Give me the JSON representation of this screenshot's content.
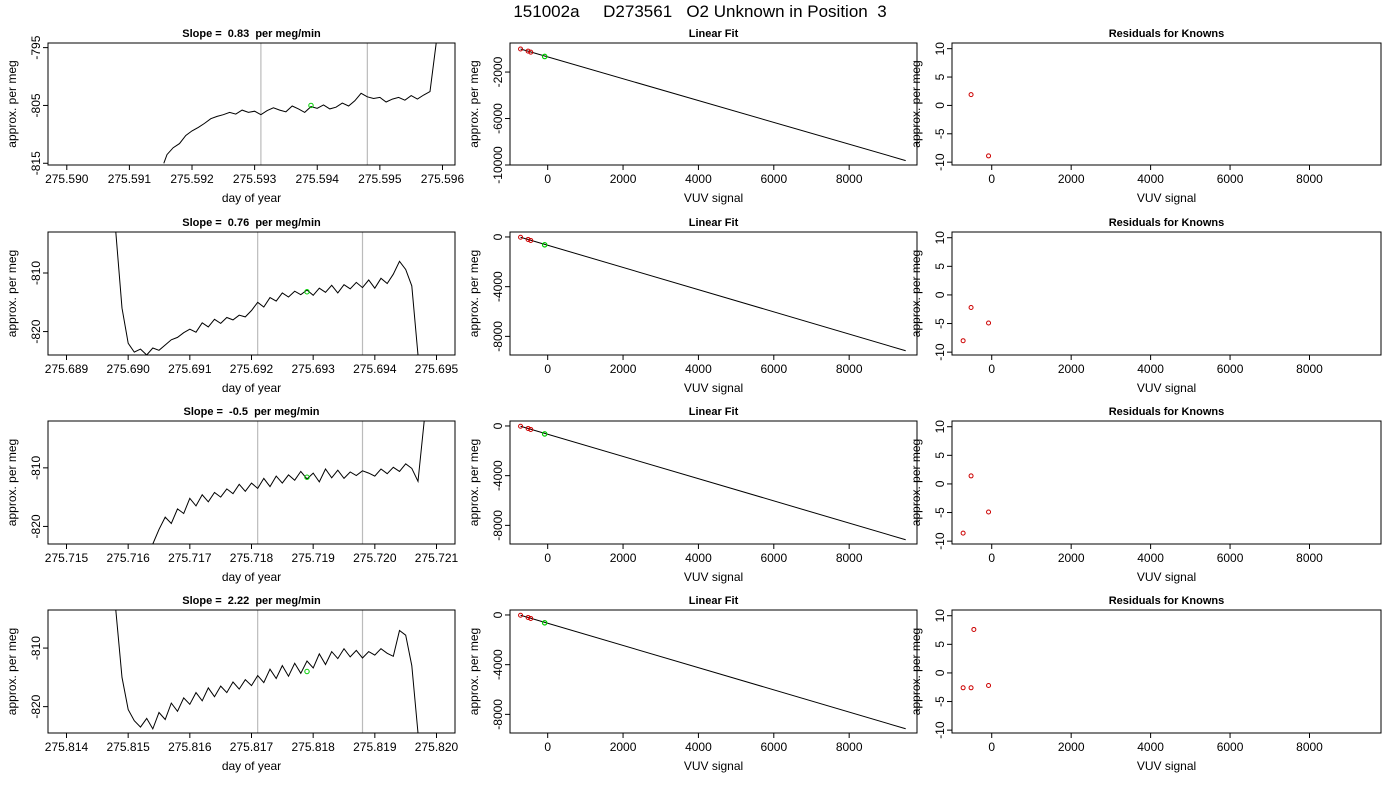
{
  "page_title": "151002a     D273561   O2 Unknown in Position  3",
  "colors": {
    "trace": "#000000",
    "highlight": "#00cc00",
    "known_point": "#cc0000",
    "marker_line": "#bbbbbb",
    "fit_line": "#000000"
  },
  "chart_data": [
    {
      "type": "line",
      "title": "Slope =  0.83  per meg/min",
      "xlabel": "day of year",
      "ylabel": "approx. per meg",
      "xlim": [
        275.5897,
        275.5962
      ],
      "ylim": [
        -815.3,
        -794.2
      ],
      "x_ticks": [
        "275.590",
        "275.591",
        "275.592",
        "275.593",
        "275.594",
        "275.595",
        "275.596"
      ],
      "x_tick_values": [
        275.59,
        275.591,
        275.592,
        275.593,
        275.594,
        275.595,
        275.596
      ],
      "y_ticks": [
        "-815",
        "-805",
        "-795"
      ],
      "y_tick_values": [
        -815,
        -805,
        -795
      ],
      "vlines": [
        275.5931,
        275.5948
      ],
      "highlight_point": {
        "x": 275.5939,
        "y": -805.0
      },
      "x": [
        275.59155,
        275.5916,
        275.5917,
        275.5918,
        275.5919,
        275.592,
        275.5921,
        275.5922,
        275.5923,
        275.5924,
        275.5925,
        275.5926,
        275.5927,
        275.5928,
        275.5929,
        275.593,
        275.5931,
        275.5932,
        275.5933,
        275.5934,
        275.5935,
        275.5936,
        275.5937,
        275.5938,
        275.5939,
        275.594,
        275.5941,
        275.5942,
        275.5943,
        275.5944,
        275.5945,
        275.5946,
        275.5947,
        275.5948,
        275.5949,
        275.595,
        275.5951,
        275.5952,
        275.5953,
        275.5954,
        275.5955,
        275.5956,
        275.5957,
        275.5958,
        275.5959
      ],
      "y": [
        -815.0,
        -813.5,
        -812.3,
        -811.6,
        -810.2,
        -809.4,
        -808.8,
        -808.1,
        -807.3,
        -806.9,
        -806.6,
        -806.2,
        -806.5,
        -805.8,
        -806.2,
        -806.0,
        -806.6,
        -805.9,
        -805.4,
        -805.8,
        -806.1,
        -805.1,
        -805.6,
        -806.2,
        -805.2,
        -805.5,
        -804.9,
        -805.6,
        -805.3,
        -804.6,
        -805.1,
        -804.2,
        -802.9,
        -803.5,
        -803.8,
        -803.6,
        -804.4,
        -803.9,
        -803.6,
        -804.1,
        -803.3,
        -803.9,
        -803.2,
        -802.6,
        -794.2
      ]
    },
    {
      "type": "scatter",
      "title": "Linear Fit",
      "xlabel": "VUV signal",
      "ylabel": "approx. per meg",
      "xlim": [
        -1000,
        9800
      ],
      "ylim": [
        -10000,
        500
      ],
      "x_ticks": [
        "0",
        "2000",
        "4000",
        "6000",
        "8000"
      ],
      "x_tick_values": [
        0,
        2000,
        4000,
        6000,
        8000
      ],
      "y_ticks": [
        "-10000",
        "-6000",
        "-2000"
      ],
      "y_tick_values": [
        -10000,
        -6000,
        -2000
      ],
      "fit_line": {
        "x": [
          -720,
          9500
        ],
        "y": [
          -20,
          -9620
        ]
      },
      "knowns": {
        "x": [
          -720,
          -520,
          -450
        ],
        "y": [
          -20,
          -200,
          -290
        ]
      },
      "unknown": {
        "x": -80,
        "y": -660
      }
    },
    {
      "type": "scatter",
      "title": "Residuals for Knowns",
      "xlabel": "VUV signal",
      "ylabel": "approx. per meg",
      "xlim": [
        -1000,
        9800
      ],
      "ylim": [
        -10.5,
        11
      ],
      "x_ticks": [
        "0",
        "2000",
        "4000",
        "6000",
        "8000"
      ],
      "x_tick_values": [
        0,
        2000,
        4000,
        6000,
        8000
      ],
      "y_ticks": [
        "-10",
        "-5",
        "0",
        "5",
        "10"
      ],
      "y_tick_values": [
        -10,
        -5,
        0,
        5,
        10
      ],
      "residuals": {
        "x": [
          -520,
          -80
        ],
        "y": [
          1.9,
          -8.9
        ]
      }
    },
    {
      "type": "line",
      "title": "Slope =  0.76  per meg/min",
      "xlabel": "day of year",
      "ylabel": "approx. per meg",
      "xlim": [
        275.6887,
        275.6953
      ],
      "ylim": [
        -824.0,
        -803.0
      ],
      "x_ticks": [
        "275.689",
        "275.690",
        "275.691",
        "275.692",
        "275.693",
        "275.694",
        "275.695"
      ],
      "x_tick_values": [
        275.689,
        275.69,
        275.691,
        275.692,
        275.693,
        275.694,
        275.695
      ],
      "y_ticks": [
        "-820",
        "-810"
      ],
      "y_tick_values": [
        -820,
        -810
      ],
      "vlines": [
        275.6921,
        275.6938
      ],
      "highlight_point": {
        "x": 275.6929,
        "y": -813.2
      },
      "x": [
        275.6898,
        275.6899,
        275.69,
        275.6901,
        275.6902,
        275.6903,
        275.6904,
        275.6905,
        275.6906,
        275.6907,
        275.6908,
        275.6909,
        275.691,
        275.6911,
        275.6912,
        275.6913,
        275.6914,
        275.6915,
        275.6916,
        275.6917,
        275.6918,
        275.6919,
        275.692,
        275.6921,
        275.6922,
        275.6923,
        275.6924,
        275.6925,
        275.6926,
        275.6927,
        275.6928,
        275.6929,
        275.693,
        275.6931,
        275.6932,
        275.6933,
        275.6934,
        275.6935,
        275.6936,
        275.6937,
        275.6938,
        275.6939,
        275.694,
        275.6941,
        275.6942,
        275.6943,
        275.6944,
        275.6945,
        275.6946,
        275.6947
      ],
      "y": [
        -803.0,
        -816.0,
        -822.0,
        -823.5,
        -823.0,
        -824.0,
        -822.8,
        -823.2,
        -822.3,
        -821.4,
        -821.0,
        -820.2,
        -819.6,
        -820.1,
        -818.5,
        -819.2,
        -817.9,
        -818.6,
        -817.6,
        -818.0,
        -817.2,
        -817.5,
        -816.4,
        -815.0,
        -815.8,
        -814.2,
        -814.8,
        -813.4,
        -814.1,
        -813.1,
        -813.7,
        -812.9,
        -813.8,
        -812.6,
        -813.3,
        -812.1,
        -813.4,
        -812.0,
        -812.7,
        -811.6,
        -812.5,
        -811.2,
        -812.6,
        -810.9,
        -811.8,
        -810.2,
        -808.0,
        -809.4,
        -812.2,
        -824.0
      ]
    },
    {
      "type": "scatter",
      "title": "Linear Fit",
      "xlabel": "VUV signal",
      "ylabel": "approx. per meg",
      "xlim": [
        -1000,
        9800
      ],
      "ylim": [
        -9500,
        400
      ],
      "x_ticks": [
        "0",
        "2000",
        "4000",
        "6000",
        "8000"
      ],
      "x_tick_values": [
        0,
        2000,
        4000,
        6000,
        8000
      ],
      "y_ticks": [
        "-8000",
        "-4000",
        "0"
      ],
      "y_tick_values": [
        -8000,
        -4000,
        0
      ],
      "fit_line": {
        "x": [
          -720,
          9500
        ],
        "y": [
          -20,
          -9160
        ]
      },
      "knowns": {
        "x": [
          -720,
          -520,
          -450
        ],
        "y": [
          -20,
          -200,
          -280
        ]
      },
      "unknown": {
        "x": -80,
        "y": -630
      }
    },
    {
      "type": "scatter",
      "title": "Residuals for Knowns",
      "xlabel": "VUV signal",
      "ylabel": "approx. per meg",
      "xlim": [
        -1000,
        9800
      ],
      "ylim": [
        -10.5,
        11
      ],
      "x_ticks": [
        "0",
        "2000",
        "4000",
        "6000",
        "8000"
      ],
      "x_tick_values": [
        0,
        2000,
        4000,
        6000,
        8000
      ],
      "y_ticks": [
        "-10",
        "-5",
        "0",
        "5",
        "10"
      ],
      "y_tick_values": [
        -10,
        -5,
        0,
        5,
        10
      ],
      "residuals": {
        "x": [
          -720,
          -520,
          -80
        ],
        "y": [
          -8.0,
          -2.2,
          -4.9
        ]
      }
    },
    {
      "type": "line",
      "title": "Slope =  -0.5  per meg/min",
      "xlabel": "day of year",
      "ylabel": "approx. per meg",
      "xlim": [
        275.7147,
        275.7213
      ],
      "ylim": [
        -823.0,
        -802.0
      ],
      "x_ticks": [
        "275.715",
        "275.716",
        "275.717",
        "275.718",
        "275.719",
        "275.720",
        "275.721"
      ],
      "x_tick_values": [
        275.715,
        275.716,
        275.717,
        275.718,
        275.719,
        275.72,
        275.721
      ],
      "y_ticks": [
        "-820",
        "-810"
      ],
      "y_tick_values": [
        -820,
        -810
      ],
      "vlines": [
        275.7181,
        275.7198
      ],
      "highlight_point": {
        "x": 275.7189,
        "y": -811.6
      },
      "x": [
        275.7164,
        275.7165,
        275.7166,
        275.7167,
        275.7168,
        275.7169,
        275.717,
        275.7171,
        275.7172,
        275.7173,
        275.7174,
        275.7175,
        275.7176,
        275.7177,
        275.7178,
        275.7179,
        275.718,
        275.7181,
        275.7182,
        275.7183,
        275.7184,
        275.7185,
        275.7186,
        275.7187,
        275.7188,
        275.7189,
        275.719,
        275.7191,
        275.7192,
        275.7193,
        275.7194,
        275.7195,
        275.7196,
        275.7197,
        275.7198,
        275.7199,
        275.72,
        275.7201,
        275.7202,
        275.7203,
        275.7204,
        275.7205,
        275.7206,
        275.7207,
        275.7208
      ],
      "y": [
        -823.0,
        -820.5,
        -818.4,
        -819.5,
        -817.0,
        -817.8,
        -815.2,
        -816.5,
        -814.6,
        -815.8,
        -814.2,
        -815.0,
        -813.6,
        -814.4,
        -812.8,
        -814.0,
        -812.6,
        -813.5,
        -811.8,
        -813.2,
        -811.4,
        -812.6,
        -811.2,
        -812.1,
        -810.6,
        -811.9,
        -810.9,
        -812.4,
        -810.2,
        -811.7,
        -810.4,
        -811.8,
        -810.7,
        -811.3,
        -810.5,
        -810.9,
        -811.4,
        -810.2,
        -811.0,
        -809.9,
        -810.6,
        -809.3,
        -810.1,
        -812.3,
        -802.0
      ]
    },
    {
      "type": "scatter",
      "title": "Linear Fit",
      "xlabel": "VUV signal",
      "ylabel": "approx. per meg",
      "xlim": [
        -1000,
        9800
      ],
      "ylim": [
        -9500,
        400
      ],
      "x_ticks": [
        "0",
        "2000",
        "4000",
        "6000",
        "8000"
      ],
      "x_tick_values": [
        0,
        2000,
        4000,
        6000,
        8000
      ],
      "y_ticks": [
        "-8000",
        "-4000",
        "0"
      ],
      "y_tick_values": [
        -8000,
        -4000,
        0
      ],
      "fit_line": {
        "x": [
          -720,
          9500
        ],
        "y": [
          -20,
          -9160
        ]
      },
      "knowns": {
        "x": [
          -720,
          -520,
          -450
        ],
        "y": [
          -20,
          -200,
          -280
        ]
      },
      "unknown": {
        "x": -80,
        "y": -640
      }
    },
    {
      "type": "scatter",
      "title": "Residuals for Knowns",
      "xlabel": "VUV signal",
      "ylabel": "approx. per meg",
      "xlim": [
        -1000,
        9800
      ],
      "ylim": [
        -10.5,
        11
      ],
      "x_ticks": [
        "0",
        "2000",
        "4000",
        "6000",
        "8000"
      ],
      "x_tick_values": [
        0,
        2000,
        4000,
        6000,
        8000
      ],
      "y_ticks": [
        "-10",
        "-5",
        "0",
        "5",
        "10"
      ],
      "y_tick_values": [
        -10,
        -5,
        0,
        5,
        10
      ],
      "residuals": {
        "x": [
          -720,
          -520,
          -80
        ],
        "y": [
          -8.6,
          1.4,
          -4.9
        ]
      }
    },
    {
      "type": "line",
      "title": "Slope =  2.22  per meg/min",
      "xlabel": "day of year",
      "ylabel": "approx. per meg",
      "xlim": [
        275.8137,
        275.8203
      ],
      "ylim": [
        -824.5,
        -803.5
      ],
      "x_ticks": [
        "275.814",
        "275.815",
        "275.816",
        "275.817",
        "275.818",
        "275.819",
        "275.820"
      ],
      "x_tick_values": [
        275.814,
        275.815,
        275.816,
        275.817,
        275.818,
        275.819,
        275.82
      ],
      "y_ticks": [
        "-820",
        "-810"
      ],
      "y_tick_values": [
        -820,
        -810
      ],
      "vlines": [
        275.8171,
        275.8188
      ],
      "highlight_point": {
        "x": 275.8179,
        "y": -814.0
      },
      "x": [
        275.8148,
        275.8149,
        275.815,
        275.8151,
        275.8152,
        275.8153,
        275.8154,
        275.8155,
        275.8156,
        275.8157,
        275.8158,
        275.8159,
        275.816,
        275.8161,
        275.8162,
        275.8163,
        275.8164,
        275.8165,
        275.8166,
        275.8167,
        275.8168,
        275.8169,
        275.817,
        275.8171,
        275.8172,
        275.8173,
        275.8174,
        275.8175,
        275.8176,
        275.8177,
        275.8178,
        275.8179,
        275.818,
        275.8181,
        275.8182,
        275.8183,
        275.8184,
        275.8185,
        275.8186,
        275.8187,
        275.8188,
        275.8189,
        275.819,
        275.8191,
        275.8192,
        275.8193,
        275.8194,
        275.8195,
        275.8196,
        275.8197
      ],
      "y": [
        -803.5,
        -815.0,
        -820.5,
        -822.4,
        -823.5,
        -822.0,
        -823.8,
        -821.0,
        -822.2,
        -819.4,
        -820.8,
        -818.5,
        -819.6,
        -817.6,
        -819.0,
        -816.8,
        -818.3,
        -816.5,
        -817.6,
        -815.8,
        -817.0,
        -815.4,
        -816.4,
        -814.7,
        -815.9,
        -813.6,
        -815.2,
        -813.0,
        -814.8,
        -812.6,
        -814.3,
        -812.2,
        -813.4,
        -811.0,
        -812.8,
        -810.6,
        -811.8,
        -810.1,
        -811.5,
        -810.4,
        -811.7,
        -810.6,
        -811.2,
        -810.1,
        -810.9,
        -811.4,
        -807.0,
        -807.8,
        -813.0,
        -824.5
      ]
    },
    {
      "type": "scatter",
      "title": "Linear Fit",
      "xlabel": "VUV signal",
      "ylabel": "approx. per meg",
      "xlim": [
        -1000,
        9800
      ],
      "ylim": [
        -9500,
        400
      ],
      "x_ticks": [
        "0",
        "2000",
        "4000",
        "6000",
        "8000"
      ],
      "x_tick_values": [
        0,
        2000,
        4000,
        6000,
        8000
      ],
      "y_ticks": [
        "-8000",
        "-4000",
        "0"
      ],
      "y_tick_values": [
        -8000,
        -4000,
        0
      ],
      "fit_line": {
        "x": [
          -720,
          9500
        ],
        "y": [
          -20,
          -9160
        ]
      },
      "knowns": {
        "x": [
          -720,
          -520,
          -450
        ],
        "y": [
          -20,
          -200,
          -280
        ]
      },
      "unknown": {
        "x": -80,
        "y": -630
      }
    },
    {
      "type": "scatter",
      "title": "Residuals for Knowns",
      "xlabel": "VUV signal",
      "ylabel": "approx. per meg",
      "xlim": [
        -1000,
        9800
      ],
      "ylim": [
        -10.5,
        11
      ],
      "x_ticks": [
        "0",
        "2000",
        "4000",
        "6000",
        "8000"
      ],
      "x_tick_values": [
        0,
        2000,
        4000,
        6000,
        8000
      ],
      "y_ticks": [
        "-10",
        "-5",
        "0",
        "5",
        "10"
      ],
      "y_tick_values": [
        -10,
        -5,
        0,
        5,
        10
      ],
      "residuals": {
        "x": [
          -720,
          -520,
          -450,
          -80
        ],
        "y": [
          -2.6,
          -2.6,
          7.6,
          -2.2
        ]
      }
    }
  ]
}
